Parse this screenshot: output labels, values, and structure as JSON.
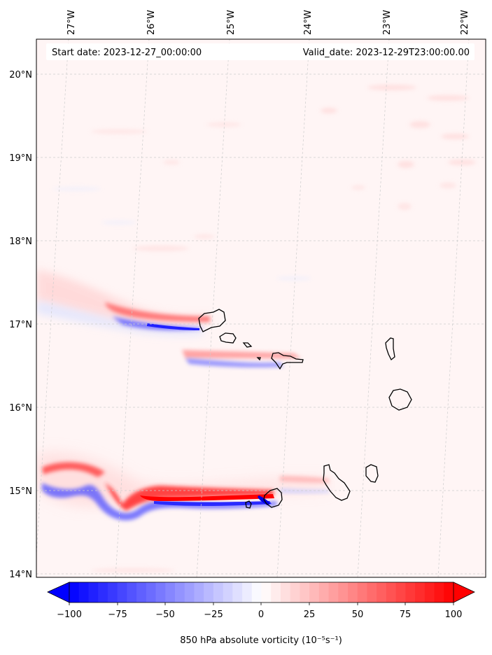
{
  "map": {
    "start_label": "Start date: 2023-12-27_00:00:00",
    "valid_label": "Valid_date: 2023-12-29T23:00:00.00",
    "lon_ticks": [
      "27°W",
      "26°W",
      "25°W",
      "24°W",
      "23°W",
      "22°W"
    ],
    "lat_ticks": [
      "20°N",
      "19°N",
      "18°N",
      "17°N",
      "16°N",
      "15°N",
      "14°N"
    ],
    "extent": {
      "lon_min": -27.35,
      "lon_max": -21.8,
      "lat_min": 13.95,
      "lat_max": 20.43
    },
    "gridlines": true
  },
  "colorbar": {
    "label": "850 hPa absolute vorticity (10⁻⁵s⁻¹)",
    "ticks": [
      "−100",
      "−75",
      "−50",
      "−25",
      "0",
      "25",
      "50",
      "75",
      "100"
    ],
    "vmin": -100,
    "vmax": 100,
    "step": 5,
    "low_color": "#0000ff",
    "high_color": "#ff0000",
    "mid_color": "#ffffff",
    "extend": "both"
  },
  "colors": {
    "background_field": "#fff5f5",
    "coast": "#000000",
    "grid": "#cccccc"
  }
}
